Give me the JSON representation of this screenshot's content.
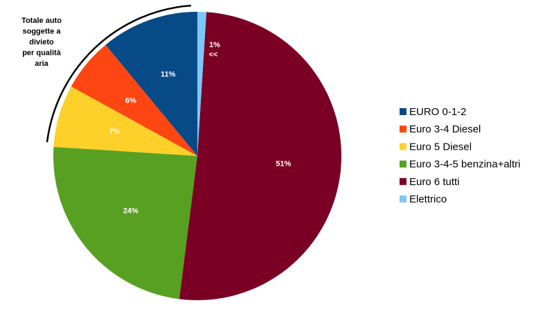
{
  "chart_data": {
    "type": "pie",
    "categories": [
      "EURO 0-1-2",
      "Euro 3-4 Diesel",
      "Euro 5 Diesel",
      "Euro 3-4-5 benzina+altri",
      "Euro 6 tutti",
      "Elettrico"
    ],
    "values": [
      11,
      6,
      7,
      24,
      51,
      1
    ],
    "value_labels": [
      "11%",
      "6%",
      "7%",
      "24%",
      "51%",
      "1%"
    ],
    "colors": [
      "#064a87",
      "#fd4611",
      "#fdd02a",
      "#58a021",
      "#7a0026",
      "#7fc6f7"
    ],
    "annotation_lines": [
      "Totale auto",
      "soggette a",
      "divieto",
      "per qualità",
      "aria"
    ],
    "small_slice_note": "<<",
    "legend": "right"
  }
}
